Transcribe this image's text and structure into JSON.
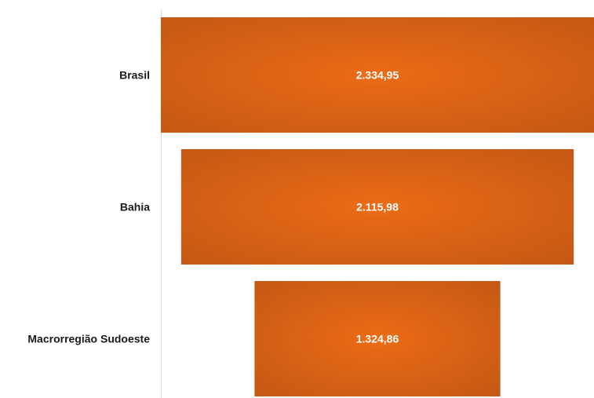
{
  "chart_data": {
    "type": "bar",
    "subtype": "funnel",
    "title": "",
    "xlabel": "",
    "ylabel": "",
    "grid": false,
    "legend": "none",
    "categories": [
      "Brasil",
      "Bahia",
      "Macrorregião Sudoeste"
    ],
    "values": [
      2334.95,
      2115.98,
      1324.86
    ],
    "value_labels": [
      "2.334,95",
      "2.115,98",
      "1.324,86"
    ],
    "colors": {
      "bar_center": "#ec6b16",
      "bar_edge": "#c25714",
      "axis_line": "#d9d9d9",
      "value_text": "#ffffff",
      "category_text": "#1a1a1a"
    }
  }
}
